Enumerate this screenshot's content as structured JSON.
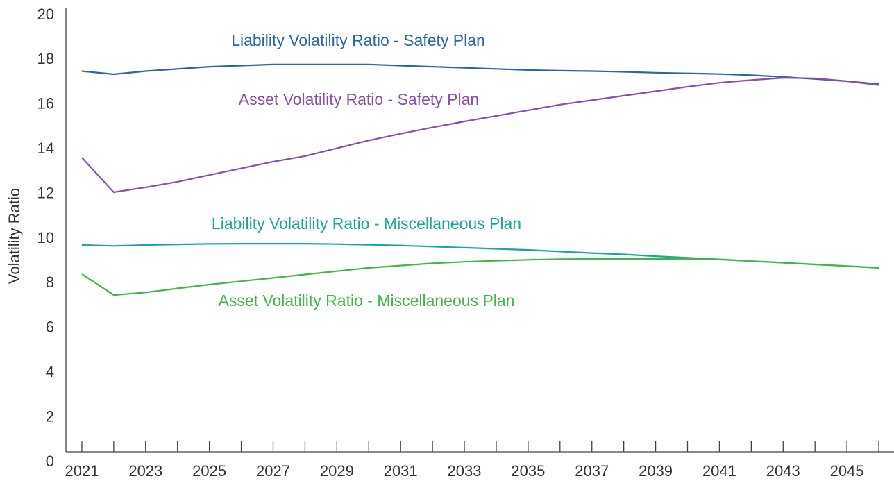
{
  "chart_data": {
    "type": "line",
    "ylabel": "Volatility Ratio",
    "x": [
      2021,
      2022,
      2023,
      2024,
      2025,
      2026,
      2027,
      2028,
      2029,
      2030,
      2031,
      2032,
      2033,
      2034,
      2035,
      2036,
      2037,
      2038,
      2039,
      2040,
      2041,
      2042,
      2043,
      2044,
      2045,
      2046
    ],
    "xlim": [
      2020.5,
      2046.5
    ],
    "xticks": [
      2021,
      2023,
      2025,
      2027,
      2029,
      2031,
      2033,
      2035,
      2037,
      2039,
      2041,
      2043,
      2045
    ],
    "ylim": [
      0,
      20
    ],
    "yticks": [
      0,
      2,
      4,
      6,
      8,
      10,
      12,
      14,
      16,
      18,
      20
    ],
    "grid": false,
    "series": [
      {
        "name": "Liability Volatility Ratio - Safety Plan",
        "color": "#2b66a6",
        "values": [
          17.5,
          17.36,
          17.5,
          17.6,
          17.7,
          17.75,
          17.8,
          17.8,
          17.8,
          17.8,
          17.75,
          17.7,
          17.65,
          17.6,
          17.55,
          17.52,
          17.5,
          17.47,
          17.43,
          17.4,
          17.37,
          17.32,
          17.24,
          17.15,
          17.05,
          16.92
        ]
      },
      {
        "name": "Asset Volatility Ratio - Safety Plan",
        "color": "#8a4db0",
        "values": [
          13.63,
          12.08,
          12.3,
          12.55,
          12.85,
          13.15,
          13.45,
          13.7,
          14.05,
          14.4,
          14.7,
          14.98,
          15.25,
          15.5,
          15.75,
          16.0,
          16.2,
          16.4,
          16.6,
          16.8,
          16.98,
          17.1,
          17.2,
          17.18,
          17.05,
          16.88
        ]
      },
      {
        "name": "Liability Volatility Ratio - Miscellaneous Plan",
        "color": "#16a89a",
        "values": [
          9.72,
          9.68,
          9.72,
          9.75,
          9.77,
          9.78,
          9.78,
          9.78,
          9.76,
          9.73,
          9.7,
          9.65,
          9.6,
          9.55,
          9.5,
          9.43,
          9.36,
          9.3,
          9.22,
          9.15,
          9.08,
          9.0,
          8.93,
          8.85,
          8.78,
          8.7
        ]
      },
      {
        "name": "Asset Volatility Ratio - Miscellaneous Plan",
        "color": "#41b649",
        "values": [
          8.42,
          7.48,
          7.6,
          7.78,
          7.95,
          8.1,
          8.25,
          8.4,
          8.55,
          8.7,
          8.8,
          8.9,
          8.97,
          9.02,
          9.06,
          9.09,
          9.1,
          9.1,
          9.1,
          9.1,
          9.07,
          9.0,
          8.93,
          8.85,
          8.78,
          8.7
        ]
      }
    ]
  }
}
